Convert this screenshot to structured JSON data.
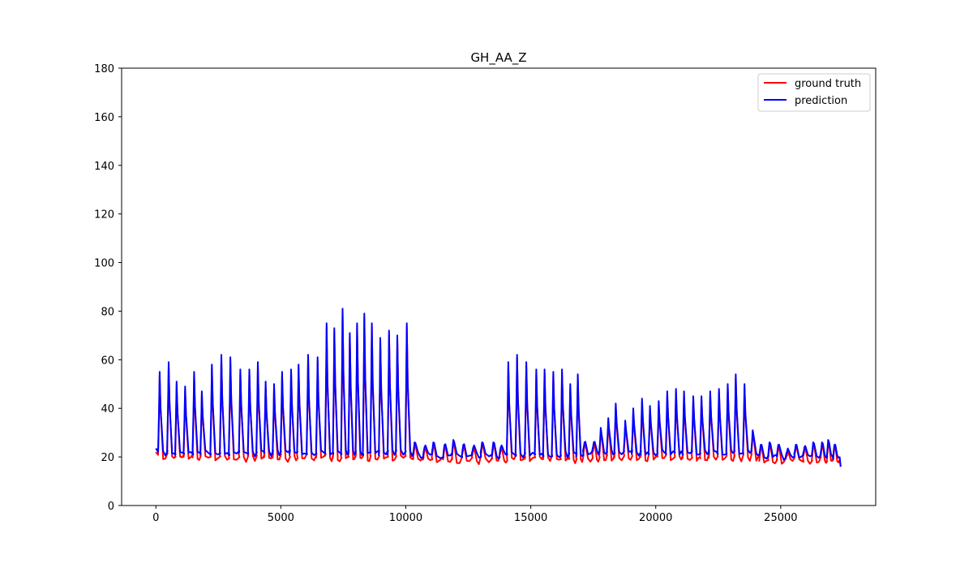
{
  "chart_data": {
    "type": "line",
    "title": "GH_AA_Z",
    "xlabel": "",
    "ylabel": "",
    "xlim": [
      -1370,
      28800
    ],
    "ylim": [
      0,
      180
    ],
    "x_ticks": [
      0,
      5000,
      10000,
      15000,
      20000,
      25000
    ],
    "x_tick_labels": [
      "0",
      "5000",
      "10000",
      "15000",
      "20000",
      "25000"
    ],
    "y_ticks": [
      0,
      20,
      40,
      60,
      80,
      100,
      120,
      140,
      160,
      180
    ],
    "y_tick_labels": [
      "0",
      "20",
      "40",
      "60",
      "80",
      "100",
      "120",
      "140",
      "160",
      "180"
    ],
    "grid": false,
    "legend_position": "top-right",
    "colors": {
      "ground_truth": "#ff0000",
      "prediction": "#0000ff"
    },
    "pattern": {
      "baseline_start": 22,
      "cycles": [
        {
          "x": 150,
          "peak": 55
        },
        {
          "x": 510,
          "peak": 59
        },
        {
          "x": 830,
          "peak": 51
        },
        {
          "x": 1170,
          "peak": 49
        },
        {
          "x": 1530,
          "peak": 55
        },
        {
          "x": 1840,
          "peak": 47
        },
        {
          "x": 2240,
          "peak": 58
        },
        {
          "x": 2620,
          "peak": 62
        },
        {
          "x": 2980,
          "peak": 61
        },
        {
          "x": 3380,
          "peak": 56
        },
        {
          "x": 3740,
          "peak": 56
        },
        {
          "x": 4080,
          "peak": 59
        },
        {
          "x": 4390,
          "peak": 51
        },
        {
          "x": 4730,
          "peak": 50
        },
        {
          "x": 5050,
          "peak": 55
        },
        {
          "x": 5410,
          "peak": 56
        },
        {
          "x": 5710,
          "peak": 58
        },
        {
          "x": 6090,
          "peak": 62
        },
        {
          "x": 6470,
          "peak": 61
        },
        {
          "x": 6830,
          "peak": 75
        },
        {
          "x": 7140,
          "peak": 73
        },
        {
          "x": 7470,
          "peak": 81
        },
        {
          "x": 7760,
          "peak": 71
        },
        {
          "x": 8050,
          "peak": 75
        },
        {
          "x": 8340,
          "peak": 79
        },
        {
          "x": 8640,
          "peak": 75
        },
        {
          "x": 8980,
          "peak": 69
        },
        {
          "x": 9330,
          "peak": 72
        },
        {
          "x": 9660,
          "peak": 70
        },
        {
          "x": 10040,
          "peak": 75
        },
        {
          "x": 10350,
          "peak": 26
        },
        {
          "x": 10750,
          "peak": 24
        },
        {
          "x": 11100,
          "peak": 26
        },
        {
          "x": 11550,
          "peak": 25
        },
        {
          "x": 11900,
          "peak": 27
        },
        {
          "x": 12300,
          "peak": 25
        },
        {
          "x": 12700,
          "peak": 24
        },
        {
          "x": 13050,
          "peak": 26
        },
        {
          "x": 13500,
          "peak": 26
        },
        {
          "x": 13800,
          "peak": 24
        },
        {
          "x": 14100,
          "peak": 59
        },
        {
          "x": 14450,
          "peak": 62
        },
        {
          "x": 14820,
          "peak": 59
        },
        {
          "x": 15220,
          "peak": 56
        },
        {
          "x": 15550,
          "peak": 56
        },
        {
          "x": 15900,
          "peak": 55
        },
        {
          "x": 16250,
          "peak": 56
        },
        {
          "x": 16580,
          "peak": 50
        },
        {
          "x": 16880,
          "peak": 54
        },
        {
          "x": 17150,
          "peak": 26
        },
        {
          "x": 17520,
          "peak": 26
        },
        {
          "x": 17800,
          "peak": 32
        },
        {
          "x": 18100,
          "peak": 36
        },
        {
          "x": 18400,
          "peak": 42
        },
        {
          "x": 18780,
          "peak": 35
        },
        {
          "x": 19100,
          "peak": 40
        },
        {
          "x": 19450,
          "peak": 44
        },
        {
          "x": 19770,
          "peak": 41
        },
        {
          "x": 20120,
          "peak": 43
        },
        {
          "x": 20460,
          "peak": 47
        },
        {
          "x": 20810,
          "peak": 48
        },
        {
          "x": 21130,
          "peak": 47
        },
        {
          "x": 21500,
          "peak": 45
        },
        {
          "x": 21830,
          "peak": 45
        },
        {
          "x": 22180,
          "peak": 47
        },
        {
          "x": 22530,
          "peak": 48
        },
        {
          "x": 22880,
          "peak": 50
        },
        {
          "x": 23200,
          "peak": 54
        },
        {
          "x": 23550,
          "peak": 50
        },
        {
          "x": 23880,
          "peak": 31
        },
        {
          "x": 24200,
          "peak": 25
        },
        {
          "x": 24550,
          "peak": 26
        },
        {
          "x": 24900,
          "peak": 25
        },
        {
          "x": 25250,
          "peak": 22
        },
        {
          "x": 25600,
          "peak": 25
        },
        {
          "x": 25950,
          "peak": 24
        },
        {
          "x": 26300,
          "peak": 26
        },
        {
          "x": 26650,
          "peak": 26
        },
        {
          "x": 26900,
          "peak": 27
        },
        {
          "x": 27150,
          "peak": 25
        }
      ],
      "x_end": 27400,
      "end_value": 16
    },
    "series": [
      {
        "name": "ground truth",
        "color": "#ff0000"
      },
      {
        "name": "prediction",
        "color": "#0000ff"
      }
    ]
  }
}
